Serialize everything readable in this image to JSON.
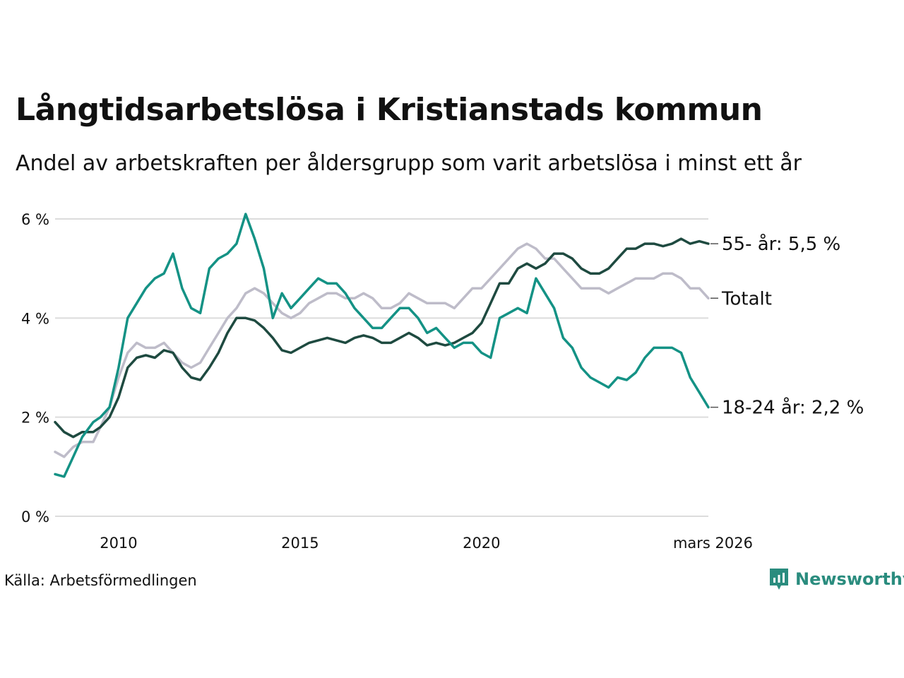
{
  "title": "Långtidsarbetslösa i Kristianstads kommun",
  "subtitle": "Andel av arbetskraften per åldersgrupp som varit arbetslösa i minst ett år",
  "source": "Källa: Arbetsförmedlingen",
  "brand": {
    "name": "Newsworthy",
    "icon": "newsworthy-logo-icon",
    "color": "#2a8c7e"
  },
  "chart_data": {
    "type": "line",
    "x_range": [
      2008.25,
      2026.25
    ],
    "ylim": [
      0,
      6
    ],
    "y_ticks": [
      {
        "value": 0,
        "label": "0 %"
      },
      {
        "value": 2,
        "label": "2 %"
      },
      {
        "value": 4,
        "label": "4 %"
      },
      {
        "value": 6,
        "label": "6 %"
      }
    ],
    "x_ticks": [
      {
        "value": 2010,
        "label": "2010"
      },
      {
        "value": 2015,
        "label": "2015"
      },
      {
        "value": 2020,
        "label": "2020"
      },
      {
        "value": 2026.25,
        "label": "mars 2026"
      }
    ],
    "grid": true,
    "series": [
      {
        "name": "Totalt",
        "end_label": "Totalt",
        "color": "#bebcc9",
        "points": [
          [
            2008.25,
            1.3
          ],
          [
            2008.5,
            1.2
          ],
          [
            2008.75,
            1.4
          ],
          [
            2009,
            1.5
          ],
          [
            2009.3,
            1.5
          ],
          [
            2009.5,
            1.8
          ],
          [
            2009.75,
            2.2
          ],
          [
            2010,
            2.8
          ],
          [
            2010.25,
            3.3
          ],
          [
            2010.5,
            3.5
          ],
          [
            2010.75,
            3.4
          ],
          [
            2011,
            3.4
          ],
          [
            2011.25,
            3.5
          ],
          [
            2011.5,
            3.3
          ],
          [
            2011.75,
            3.1
          ],
          [
            2012,
            3.0
          ],
          [
            2012.25,
            3.1
          ],
          [
            2012.5,
            3.4
          ],
          [
            2012.75,
            3.7
          ],
          [
            2013,
            4.0
          ],
          [
            2013.25,
            4.2
          ],
          [
            2013.5,
            4.5
          ],
          [
            2013.75,
            4.6
          ],
          [
            2014,
            4.5
          ],
          [
            2014.25,
            4.3
          ],
          [
            2014.5,
            4.1
          ],
          [
            2014.75,
            4.0
          ],
          [
            2015,
            4.1
          ],
          [
            2015.25,
            4.3
          ],
          [
            2015.5,
            4.4
          ],
          [
            2015.75,
            4.5
          ],
          [
            2016,
            4.5
          ],
          [
            2016.25,
            4.4
          ],
          [
            2016.5,
            4.4
          ],
          [
            2016.75,
            4.5
          ],
          [
            2017,
            4.4
          ],
          [
            2017.25,
            4.2
          ],
          [
            2017.5,
            4.2
          ],
          [
            2017.75,
            4.3
          ],
          [
            2018,
            4.5
          ],
          [
            2018.25,
            4.4
          ],
          [
            2018.5,
            4.3
          ],
          [
            2018.75,
            4.3
          ],
          [
            2019,
            4.3
          ],
          [
            2019.25,
            4.2
          ],
          [
            2019.5,
            4.4
          ],
          [
            2019.75,
            4.6
          ],
          [
            2020,
            4.6
          ],
          [
            2020.25,
            4.8
          ],
          [
            2020.5,
            5.0
          ],
          [
            2020.75,
            5.2
          ],
          [
            2021,
            5.4
          ],
          [
            2021.25,
            5.5
          ],
          [
            2021.5,
            5.4
          ],
          [
            2021.75,
            5.2
          ],
          [
            2022,
            5.2
          ],
          [
            2022.25,
            5.0
          ],
          [
            2022.5,
            4.8
          ],
          [
            2022.75,
            4.6
          ],
          [
            2023,
            4.6
          ],
          [
            2023.25,
            4.6
          ],
          [
            2023.5,
            4.5
          ],
          [
            2023.75,
            4.6
          ],
          [
            2024,
            4.7
          ],
          [
            2024.25,
            4.8
          ],
          [
            2024.5,
            4.8
          ],
          [
            2024.75,
            4.8
          ],
          [
            2025,
            4.9
          ],
          [
            2025.25,
            4.9
          ],
          [
            2025.5,
            4.8
          ],
          [
            2025.75,
            4.6
          ],
          [
            2026,
            4.6
          ],
          [
            2026.25,
            4.4
          ]
        ]
      },
      {
        "name": "55- år",
        "end_label": "55- år: 5,5 %",
        "color": "#1e4a40",
        "points": [
          [
            2008.25,
            1.9
          ],
          [
            2008.5,
            1.7
          ],
          [
            2008.75,
            1.6
          ],
          [
            2009,
            1.7
          ],
          [
            2009.3,
            1.7
          ],
          [
            2009.5,
            1.8
          ],
          [
            2009.75,
            2.0
          ],
          [
            2010,
            2.4
          ],
          [
            2010.25,
            3.0
          ],
          [
            2010.5,
            3.2
          ],
          [
            2010.75,
            3.25
          ],
          [
            2011,
            3.2
          ],
          [
            2011.25,
            3.35
          ],
          [
            2011.5,
            3.3
          ],
          [
            2011.75,
            3.0
          ],
          [
            2012,
            2.8
          ],
          [
            2012.25,
            2.75
          ],
          [
            2012.5,
            3.0
          ],
          [
            2012.75,
            3.3
          ],
          [
            2013,
            3.7
          ],
          [
            2013.25,
            4.0
          ],
          [
            2013.5,
            4.0
          ],
          [
            2013.75,
            3.95
          ],
          [
            2014,
            3.8
          ],
          [
            2014.25,
            3.6
          ],
          [
            2014.5,
            3.35
          ],
          [
            2014.75,
            3.3
          ],
          [
            2015,
            3.4
          ],
          [
            2015.25,
            3.5
          ],
          [
            2015.5,
            3.55
          ],
          [
            2015.75,
            3.6
          ],
          [
            2016,
            3.55
          ],
          [
            2016.25,
            3.5
          ],
          [
            2016.5,
            3.6
          ],
          [
            2016.75,
            3.65
          ],
          [
            2017,
            3.6
          ],
          [
            2017.25,
            3.5
          ],
          [
            2017.5,
            3.5
          ],
          [
            2017.75,
            3.6
          ],
          [
            2018,
            3.7
          ],
          [
            2018.25,
            3.6
          ],
          [
            2018.5,
            3.45
          ],
          [
            2018.75,
            3.5
          ],
          [
            2019,
            3.45
          ],
          [
            2019.25,
            3.5
          ],
          [
            2019.5,
            3.6
          ],
          [
            2019.75,
            3.7
          ],
          [
            2020,
            3.9
          ],
          [
            2020.25,
            4.3
          ],
          [
            2020.5,
            4.7
          ],
          [
            2020.75,
            4.7
          ],
          [
            2021,
            5.0
          ],
          [
            2021.25,
            5.1
          ],
          [
            2021.5,
            5.0
          ],
          [
            2021.75,
            5.1
          ],
          [
            2022,
            5.3
          ],
          [
            2022.25,
            5.3
          ],
          [
            2022.5,
            5.2
          ],
          [
            2022.75,
            5.0
          ],
          [
            2023,
            4.9
          ],
          [
            2023.25,
            4.9
          ],
          [
            2023.5,
            5.0
          ],
          [
            2023.75,
            5.2
          ],
          [
            2024,
            5.4
          ],
          [
            2024.25,
            5.4
          ],
          [
            2024.5,
            5.5
          ],
          [
            2024.75,
            5.5
          ],
          [
            2025,
            5.45
          ],
          [
            2025.25,
            5.5
          ],
          [
            2025.5,
            5.6
          ],
          [
            2025.75,
            5.5
          ],
          [
            2026,
            5.55
          ],
          [
            2026.25,
            5.5
          ]
        ]
      },
      {
        "name": "18-24 år",
        "end_label": "18-24 år: 2,2 %",
        "color": "#149285",
        "points": [
          [
            2008.25,
            0.85
          ],
          [
            2008.5,
            0.8
          ],
          [
            2008.75,
            1.2
          ],
          [
            2009,
            1.6
          ],
          [
            2009.3,
            1.9
          ],
          [
            2009.5,
            2.0
          ],
          [
            2009.75,
            2.2
          ],
          [
            2010,
            3.0
          ],
          [
            2010.25,
            4.0
          ],
          [
            2010.5,
            4.3
          ],
          [
            2010.75,
            4.6
          ],
          [
            2011,
            4.8
          ],
          [
            2011.25,
            4.9
          ],
          [
            2011.5,
            5.3
          ],
          [
            2011.75,
            4.6
          ],
          [
            2012,
            4.2
          ],
          [
            2012.25,
            4.1
          ],
          [
            2012.5,
            5.0
          ],
          [
            2012.75,
            5.2
          ],
          [
            2013,
            5.3
          ],
          [
            2013.25,
            5.5
          ],
          [
            2013.5,
            6.1
          ],
          [
            2013.75,
            5.6
          ],
          [
            2014,
            5.0
          ],
          [
            2014.25,
            4.0
          ],
          [
            2014.5,
            4.5
          ],
          [
            2014.75,
            4.2
          ],
          [
            2015,
            4.4
          ],
          [
            2015.25,
            4.6
          ],
          [
            2015.5,
            4.8
          ],
          [
            2015.75,
            4.7
          ],
          [
            2016,
            4.7
          ],
          [
            2016.25,
            4.5
          ],
          [
            2016.5,
            4.2
          ],
          [
            2016.75,
            4.0
          ],
          [
            2017,
            3.8
          ],
          [
            2017.25,
            3.8
          ],
          [
            2017.5,
            4.0
          ],
          [
            2017.75,
            4.2
          ],
          [
            2018,
            4.2
          ],
          [
            2018.25,
            4.0
          ],
          [
            2018.5,
            3.7
          ],
          [
            2018.75,
            3.8
          ],
          [
            2019,
            3.6
          ],
          [
            2019.25,
            3.4
          ],
          [
            2019.5,
            3.5
          ],
          [
            2019.75,
            3.5
          ],
          [
            2020,
            3.3
          ],
          [
            2020.25,
            3.2
          ],
          [
            2020.5,
            4.0
          ],
          [
            2020.75,
            4.1
          ],
          [
            2021,
            4.2
          ],
          [
            2021.25,
            4.1
          ],
          [
            2021.5,
            4.8
          ],
          [
            2021.75,
            4.5
          ],
          [
            2022,
            4.2
          ],
          [
            2022.25,
            3.6
          ],
          [
            2022.5,
            3.4
          ],
          [
            2022.75,
            3.0
          ],
          [
            2023,
            2.8
          ],
          [
            2023.25,
            2.7
          ],
          [
            2023.5,
            2.6
          ],
          [
            2023.75,
            2.8
          ],
          [
            2024,
            2.75
          ],
          [
            2024.25,
            2.9
          ],
          [
            2024.5,
            3.2
          ],
          [
            2024.75,
            3.4
          ],
          [
            2025,
            3.4
          ],
          [
            2025.25,
            3.4
          ],
          [
            2025.5,
            3.3
          ],
          [
            2025.75,
            2.8
          ],
          [
            2026,
            2.5
          ],
          [
            2026.25,
            2.2
          ]
        ]
      }
    ]
  }
}
